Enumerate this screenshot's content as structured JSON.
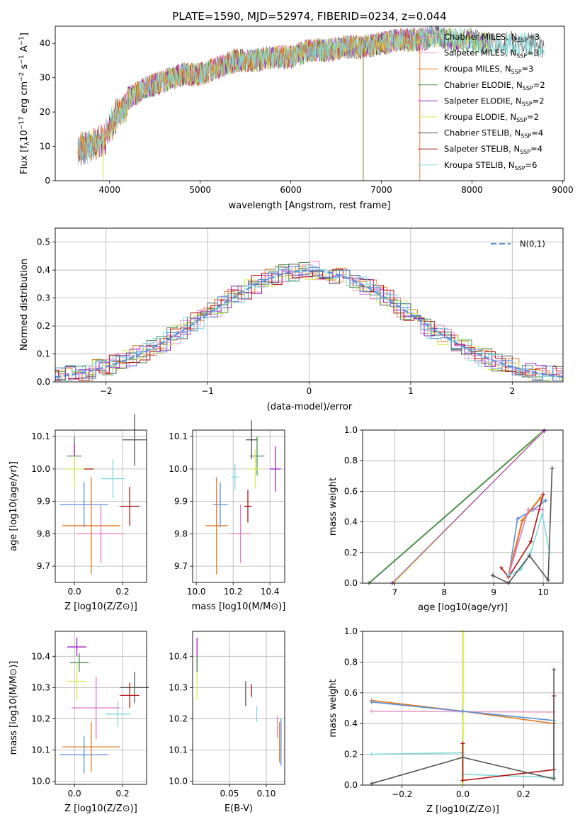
{
  "colors": {
    "chab_miles": "#e377c2",
    "salp_miles": "#e8a0c8",
    "kroupa_miles": "#e07b20",
    "chab_elodie": "#4f8f4f",
    "salp_elodie": "#a020c0",
    "kroupa_elodie": "#d9e85a",
    "chab_stelib": "#555555",
    "salp_stelib": "#b01010",
    "kroupa_stelib": "#80d8d8",
    "gauss": "#5b8fd9",
    "blue_model": "#5b8fd9"
  },
  "chart_data": [
    {
      "type": "line",
      "title": "PLATE=1590, MJD=52974, FIBERID=0234, z=0.044",
      "xlabel": "wavelength [Angstrom, rest frame]",
      "ylabel": "Flux [f_λ10^-17 erg cm^-2 s^-1 A^-1]",
      "xlim": [
        3400,
        9020
      ],
      "ylim": [
        0,
        45
      ],
      "xticks": [
        "4000",
        "5000",
        "6000",
        "7000",
        "8000",
        "9000"
      ],
      "yticks": [
        "0",
        "10",
        "20",
        "30",
        "40"
      ],
      "legend_position": "upper-right",
      "series": [
        {
          "name": "Chabrier MILES, N_SSP=3"
        },
        {
          "name": "Salpeter MILES, N_SSP=3"
        },
        {
          "name": "Kroupa MILES, N_SSP=3"
        },
        {
          "name": "Chabrier ELODIE, N_SSP=2"
        },
        {
          "name": "Salpeter ELODIE, N_SSP=2"
        },
        {
          "name": "Kroupa ELODIE, N_SSP=2"
        },
        {
          "name": "Chabrier STELIB, N_SSP=4"
        },
        {
          "name": "Salpeter STELIB, N_SSP=4"
        },
        {
          "name": "Kroupa STELIB, N_SSP=6"
        }
      ],
      "continuum": {
        "x": [
          3650,
          3800,
          3950,
          4050,
          4200,
          4400,
          4600,
          4800,
          5000,
          5200,
          5400,
          5600,
          5800,
          6000,
          6200,
          6400,
          6600,
          6800,
          7000,
          7200,
          7400,
          7600,
          7800,
          8000,
          8200,
          8400,
          8600,
          8800
        ],
        "y": [
          11,
          12,
          14,
          20,
          24,
          27,
          29,
          31,
          31,
          33,
          35,
          35,
          36,
          36,
          38,
          38,
          39,
          39,
          40,
          41,
          41,
          42,
          41,
          41,
          40,
          40,
          40,
          39
        ]
      }
    },
    {
      "type": "line",
      "xlabel": "(data-model)/error",
      "ylabel": "Normed distribution",
      "xlim": [
        -2.5,
        2.5
      ],
      "ylim": [
        0,
        0.55
      ],
      "xticks": [
        "−2",
        "−1",
        "0",
        "1",
        "2"
      ],
      "yticks": [
        "0.0",
        "0.1",
        "0.2",
        "0.3",
        "0.4",
        "0.5"
      ],
      "legend_position": "upper-right",
      "legend": "N(0,1)"
    },
    {
      "type": "scatter",
      "xlabel": "Z [log10(Z/Z⊙)]",
      "ylabel": "age [log10(age/yr)]",
      "xlim": [
        -0.08,
        0.3
      ],
      "ylim": [
        9.65,
        10.12
      ],
      "xticks": [
        "0.0",
        "0.2"
      ],
      "yticks": [
        "9.7",
        "9.8",
        "9.9",
        "10.0",
        "10.1"
      ],
      "points": [
        {
          "x": 0.0,
          "y": 10.04,
          "xerr": 0.03,
          "yerr": 0.06
        },
        {
          "x": 0.0,
          "y": 10.0,
          "xerr": 0.04,
          "yerr": 0.06
        },
        {
          "x": 0.06,
          "y": 10.0,
          "xerr": 0.02,
          "yerr": 0.0
        },
        {
          "x": 0.0,
          "y": 10.06,
          "xerr": 0.0,
          "yerr": 0.02
        },
        {
          "x": 0.25,
          "y": 10.09,
          "xerr": 0.05,
          "yerr": 0.08
        },
        {
          "x": 0.16,
          "y": 9.97,
          "xerr": 0.05,
          "yerr": 0.06
        },
        {
          "x": 0.23,
          "y": 9.885,
          "xerr": 0.04,
          "yerr": 0.06
        },
        {
          "x": 0.04,
          "y": 9.89,
          "xerr": 0.1,
          "yerr": 0.07
        },
        {
          "x": 0.07,
          "y": 9.825,
          "xerr": 0.12,
          "yerr": 0.15
        },
        {
          "x": 0.11,
          "y": 9.8,
          "xerr": 0.1,
          "yerr": 0.09
        }
      ]
    },
    {
      "type": "scatter",
      "xlabel": "mass [log10(M/M⊙)]",
      "xlim": [
        9.98,
        10.48
      ],
      "ylim": [
        9.65,
        10.12
      ],
      "xticks": [
        "10.0",
        "10.2",
        "10.4"
      ],
      "yticks": [
        "9.7",
        "9.8",
        "9.9",
        "10.0",
        "10.1"
      ],
      "points": [
        {
          "x": 10.33,
          "y": 10.04,
          "xerr": 0.04,
          "yerr": 0.06
        },
        {
          "x": 10.43,
          "y": 10.0,
          "xerr": 0.03,
          "yerr": 0.07
        },
        {
          "x": 10.32,
          "y": 10.0,
          "xerr": 0.04,
          "yerr": 0.06
        },
        {
          "x": 10.3,
          "y": 10.09,
          "xerr": 0.03,
          "yerr": 0.06
        },
        {
          "x": 10.21,
          "y": 9.975,
          "xerr": 0.02,
          "yerr": 0.04
        },
        {
          "x": 10.28,
          "y": 9.885,
          "xerr": 0.02,
          "yerr": 0.05
        },
        {
          "x": 10.13,
          "y": 9.89,
          "xerr": 0.04,
          "yerr": 0.07
        },
        {
          "x": 10.11,
          "y": 9.825,
          "xerr": 0.06,
          "yerr": 0.15
        },
        {
          "x": 10.24,
          "y": 9.8,
          "xerr": 0.06,
          "yerr": 0.09
        }
      ]
    },
    {
      "type": "line",
      "xlabel": "age [log10(age/yr)]",
      "ylabel": "mass weight",
      "xlim": [
        6.35,
        10.4
      ],
      "ylim": [
        0,
        1.0
      ],
      "xticks": [
        "7",
        "8",
        "9",
        "10"
      ],
      "yticks": [
        "0.0",
        "0.2",
        "0.4",
        "0.6",
        "0.8",
        "1.0"
      ]
    },
    {
      "type": "scatter",
      "xlabel": "Z [log10(Z/Z⊙)]",
      "ylabel": "mass [log10(M/M⊙)]",
      "xlim": [
        -0.08,
        0.3
      ],
      "ylim": [
        9.99,
        10.48
      ],
      "xticks": [
        "0.0",
        "0.2"
      ],
      "yticks": [
        "10.0",
        "10.1",
        "10.2",
        "10.3",
        "10.4"
      ],
      "points": [
        {
          "x": 0.01,
          "y": 10.43,
          "xerr": 0.04,
          "yerr": 0.03
        },
        {
          "x": 0.02,
          "y": 10.38,
          "xerr": 0.04,
          "yerr": 0.03
        },
        {
          "x": 0.01,
          "y": 10.32,
          "xerr": 0.04,
          "yerr": 0.06
        },
        {
          "x": 0.25,
          "y": 10.3,
          "xerr": 0.06,
          "yerr": 0.05
        },
        {
          "x": 0.23,
          "y": 10.275,
          "xerr": 0.04,
          "yerr": 0.04
        },
        {
          "x": 0.18,
          "y": 10.215,
          "xerr": 0.05,
          "yerr": 0.04
        },
        {
          "x": 0.09,
          "y": 10.235,
          "xerr": 0.1,
          "yerr": 0.1
        },
        {
          "x": 0.07,
          "y": 10.11,
          "xerr": 0.12,
          "yerr": 0.08
        },
        {
          "x": 0.04,
          "y": 10.085,
          "xerr": 0.1,
          "yerr": 0.06
        }
      ]
    },
    {
      "type": "scatter",
      "xlabel": "E(B-V)",
      "xlim": [
        0.0,
        0.125
      ],
      "ylim": [
        9.99,
        10.48
      ],
      "xticks": [
        "0.05",
        "0.10"
      ],
      "yticks": [
        "10.0",
        "10.1",
        "10.2",
        "10.3",
        "10.4"
      ]
    },
    {
      "type": "line",
      "xlabel": "Z [log10(Z/Z⊙)]",
      "ylabel": "mass weight",
      "xlim": [
        -0.33,
        0.33
      ],
      "ylim": [
        0,
        1.0
      ],
      "xticks": [
        "−0.2",
        "0.0",
        "0.2"
      ],
      "yticks": [
        "0.0",
        "0.2",
        "0.4",
        "0.6",
        "0.8",
        "1.0"
      ]
    }
  ]
}
